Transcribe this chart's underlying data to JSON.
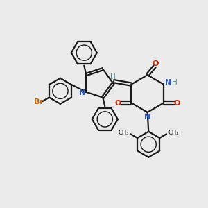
{
  "bg_color": "#ebebeb",
  "line_color": "#1a1a1a",
  "n_color": "#2255cc",
  "o_color": "#cc2200",
  "br_color": "#cc6600",
  "h_color": "#4a9090",
  "bond_lw": 1.6,
  "figsize": [
    3.0,
    3.0
  ],
  "dpi": 100,
  "xlim": [
    0,
    10
  ],
  "ylim": [
    0,
    10
  ]
}
